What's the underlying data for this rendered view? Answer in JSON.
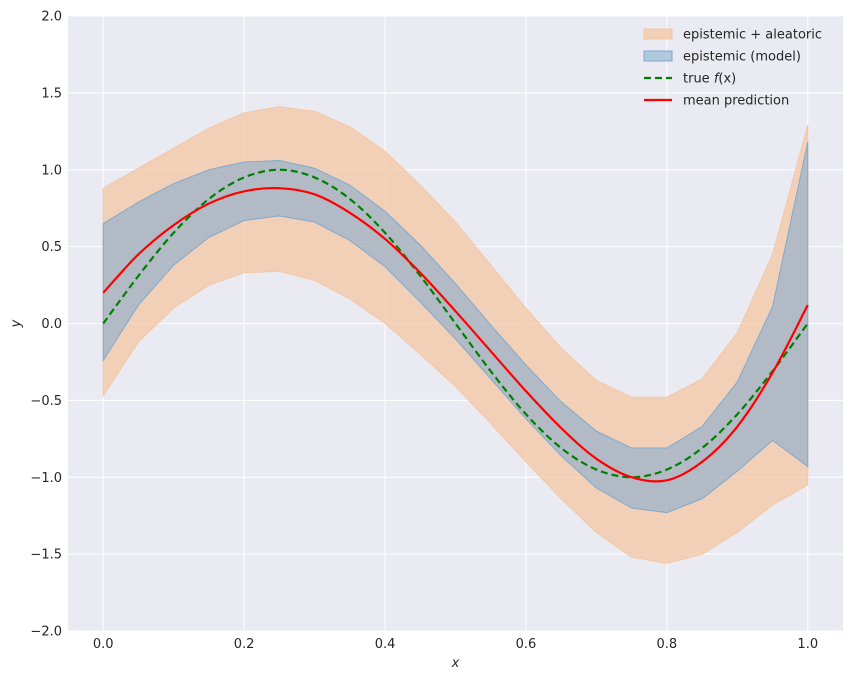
{
  "chart_data": {
    "type": "line",
    "title": "",
    "xlabel": "x",
    "ylabel": "y",
    "xlim": [
      -0.05,
      1.05
    ],
    "ylim": [
      -2.0,
      2.0
    ],
    "xticks": [
      0.0,
      0.2,
      0.4,
      0.6,
      0.8,
      1.0
    ],
    "xtick_labels": [
      "0.0",
      "0.2",
      "0.4",
      "0.6",
      "0.8",
      "1.0"
    ],
    "yticks": [
      -2.0,
      -1.5,
      -1.0,
      -0.5,
      0.0,
      0.5,
      1.0,
      1.5,
      2.0
    ],
    "ytick_labels": [
      "−2.0",
      "−1.5",
      "−1.0",
      "−0.5",
      "0.0",
      "0.5",
      "1.0",
      "1.5",
      "2.0"
    ],
    "grid": true,
    "legend_position": "top-right",
    "colors": {
      "background": "#eaeaf2",
      "grid": "#ffffff",
      "total_band": "#f4c7a4",
      "model_band": "#7ea9cf",
      "true_line": "#008000",
      "mean_line": "#ff0000"
    },
    "legend": [
      {
        "key": "total",
        "label": "epistemic + aleatoric"
      },
      {
        "key": "model",
        "label": "epistemic (model)"
      },
      {
        "key": "true",
        "label_prefix": "true ",
        "label_italic": "f",
        "label_suffix": "(x)"
      },
      {
        "key": "mean",
        "label": "mean prediction"
      }
    ],
    "series": [
      {
        "key": "total",
        "kind": "band",
        "x": [
          0.0,
          0.05,
          0.1,
          0.15,
          0.2,
          0.25,
          0.3,
          0.35,
          0.4,
          0.45,
          0.5,
          0.55,
          0.6,
          0.65,
          0.7,
          0.75,
          0.8,
          0.85,
          0.9,
          0.95,
          1.0
        ],
        "lower": [
          -0.47,
          -0.12,
          0.1,
          0.25,
          0.33,
          0.34,
          0.28,
          0.16,
          0.0,
          -0.2,
          -0.41,
          -0.65,
          -0.9,
          -1.14,
          -1.36,
          -1.52,
          -1.56,
          -1.5,
          -1.36,
          -1.18,
          -1.05
        ],
        "upper": [
          0.88,
          1.01,
          1.14,
          1.27,
          1.37,
          1.41,
          1.38,
          1.28,
          1.12,
          0.9,
          0.66,
          0.38,
          0.1,
          -0.16,
          -0.37,
          -0.48,
          -0.48,
          -0.36,
          -0.06,
          0.45,
          1.29
        ]
      },
      {
        "key": "model",
        "kind": "band",
        "x": [
          0.0,
          0.05,
          0.1,
          0.15,
          0.2,
          0.25,
          0.3,
          0.35,
          0.4,
          0.45,
          0.5,
          0.55,
          0.6,
          0.65,
          0.7,
          0.75,
          0.8,
          0.85,
          0.9,
          0.95,
          1.0
        ],
        "lower": [
          -0.24,
          0.12,
          0.38,
          0.56,
          0.67,
          0.7,
          0.66,
          0.54,
          0.37,
          0.14,
          -0.1,
          -0.36,
          -0.62,
          -0.86,
          -1.07,
          -1.2,
          -1.23,
          -1.14,
          -0.96,
          -0.76,
          -0.93
        ],
        "upper": [
          0.65,
          0.79,
          0.91,
          1.0,
          1.05,
          1.06,
          1.01,
          0.9,
          0.73,
          0.51,
          0.26,
          -0.01,
          -0.27,
          -0.51,
          -0.7,
          -0.81,
          -0.81,
          -0.67,
          -0.38,
          0.11,
          1.18
        ]
      },
      {
        "key": "true",
        "kind": "line",
        "style": "dashed",
        "x": [
          0.0,
          0.05,
          0.1,
          0.15,
          0.2,
          0.25,
          0.3,
          0.35,
          0.4,
          0.45,
          0.5,
          0.55,
          0.6,
          0.65,
          0.7,
          0.75,
          0.8,
          0.85,
          0.9,
          0.95,
          1.0
        ],
        "y": [
          0.0,
          0.31,
          0.59,
          0.81,
          0.95,
          1.0,
          0.95,
          0.81,
          0.59,
          0.31,
          0.0,
          -0.31,
          -0.59,
          -0.81,
          -0.95,
          -1.0,
          -0.95,
          -0.81,
          -0.59,
          -0.31,
          0.0
        ]
      },
      {
        "key": "mean",
        "kind": "line",
        "style": "solid",
        "x": [
          0.0,
          0.05,
          0.1,
          0.15,
          0.2,
          0.25,
          0.3,
          0.35,
          0.4,
          0.45,
          0.5,
          0.55,
          0.6,
          0.65,
          0.7,
          0.75,
          0.8,
          0.85,
          0.9,
          0.95,
          1.0
        ],
        "y": [
          0.2,
          0.45,
          0.64,
          0.78,
          0.86,
          0.88,
          0.84,
          0.72,
          0.55,
          0.33,
          0.08,
          -0.18,
          -0.44,
          -0.68,
          -0.88,
          -1.0,
          -1.02,
          -0.9,
          -0.67,
          -0.32,
          0.12
        ]
      }
    ]
  }
}
